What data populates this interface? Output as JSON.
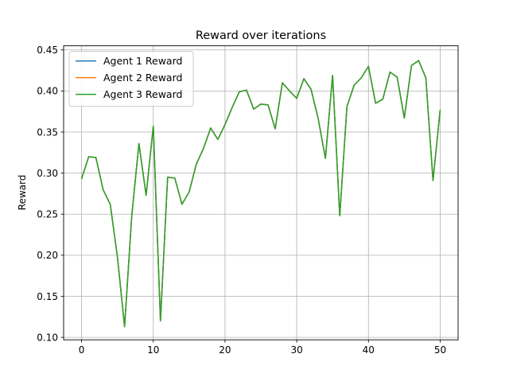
{
  "chart_data": {
    "type": "line",
    "title": "Reward over iterations",
    "xlabel": "",
    "ylabel": "Reward",
    "xlim": [
      -2.5,
      52.5
    ],
    "ylim": [
      0.097,
      0.455
    ],
    "xticks": [
      0,
      10,
      20,
      30,
      40,
      50
    ],
    "yticks": [
      0.1,
      0.15,
      0.2,
      0.25,
      0.3,
      0.35,
      0.4,
      0.45
    ],
    "xtick_labels": [
      "0",
      "10",
      "20",
      "30",
      "40",
      "50"
    ],
    "ytick_labels": [
      "0.10",
      "0.15",
      "0.20",
      "0.25",
      "0.30",
      "0.35",
      "0.40",
      "0.45"
    ],
    "grid": true,
    "legend_position": "top-left",
    "x": [
      0,
      1,
      2,
      3,
      4,
      5,
      6,
      7,
      8,
      9,
      10,
      11,
      12,
      13,
      14,
      15,
      16,
      17,
      18,
      19,
      20,
      21,
      22,
      23,
      24,
      25,
      26,
      27,
      28,
      29,
      30,
      31,
      32,
      33,
      34,
      35,
      36,
      37,
      38,
      39,
      40,
      41,
      42,
      43,
      44,
      45,
      46,
      47,
      48,
      49,
      50
    ],
    "series": [
      {
        "name": "Agent 1 Reward",
        "color": "#1f77b4",
        "values": [
          0.293,
          0.32,
          0.319,
          0.28,
          0.262,
          0.198,
          0.113,
          0.248,
          0.336,
          0.273,
          0.357,
          0.12,
          0.295,
          0.294,
          0.262,
          0.277,
          0.311,
          0.33,
          0.355,
          0.341,
          0.359,
          0.38,
          0.399,
          0.401,
          0.378,
          0.384,
          0.383,
          0.354,
          0.41,
          0.4,
          0.391,
          0.415,
          0.402,
          0.366,
          0.318,
          0.419,
          0.248,
          0.381,
          0.407,
          0.416,
          0.43,
          0.385,
          0.39,
          0.423,
          0.417,
          0.367,
          0.431,
          0.437,
          0.416,
          0.291,
          0.377
        ]
      },
      {
        "name": "Agent 2 Reward",
        "color": "#ff7f0e",
        "values": [
          0.293,
          0.32,
          0.319,
          0.28,
          0.262,
          0.198,
          0.113,
          0.248,
          0.336,
          0.273,
          0.357,
          0.12,
          0.295,
          0.294,
          0.262,
          0.277,
          0.311,
          0.33,
          0.355,
          0.341,
          0.359,
          0.38,
          0.399,
          0.401,
          0.378,
          0.384,
          0.383,
          0.354,
          0.41,
          0.4,
          0.391,
          0.415,
          0.402,
          0.366,
          0.318,
          0.419,
          0.248,
          0.381,
          0.407,
          0.416,
          0.43,
          0.385,
          0.39,
          0.423,
          0.417,
          0.367,
          0.431,
          0.437,
          0.416,
          0.291,
          0.377
        ]
      },
      {
        "name": "Agent 3 Reward",
        "color": "#2ca02c",
        "values": [
          0.293,
          0.32,
          0.319,
          0.28,
          0.262,
          0.198,
          0.113,
          0.248,
          0.336,
          0.273,
          0.357,
          0.12,
          0.295,
          0.294,
          0.262,
          0.277,
          0.311,
          0.33,
          0.355,
          0.341,
          0.359,
          0.38,
          0.399,
          0.401,
          0.378,
          0.384,
          0.383,
          0.354,
          0.41,
          0.4,
          0.391,
          0.415,
          0.402,
          0.366,
          0.318,
          0.419,
          0.248,
          0.381,
          0.407,
          0.416,
          0.43,
          0.385,
          0.39,
          0.423,
          0.417,
          0.367,
          0.431,
          0.437,
          0.416,
          0.291,
          0.377
        ]
      }
    ]
  }
}
